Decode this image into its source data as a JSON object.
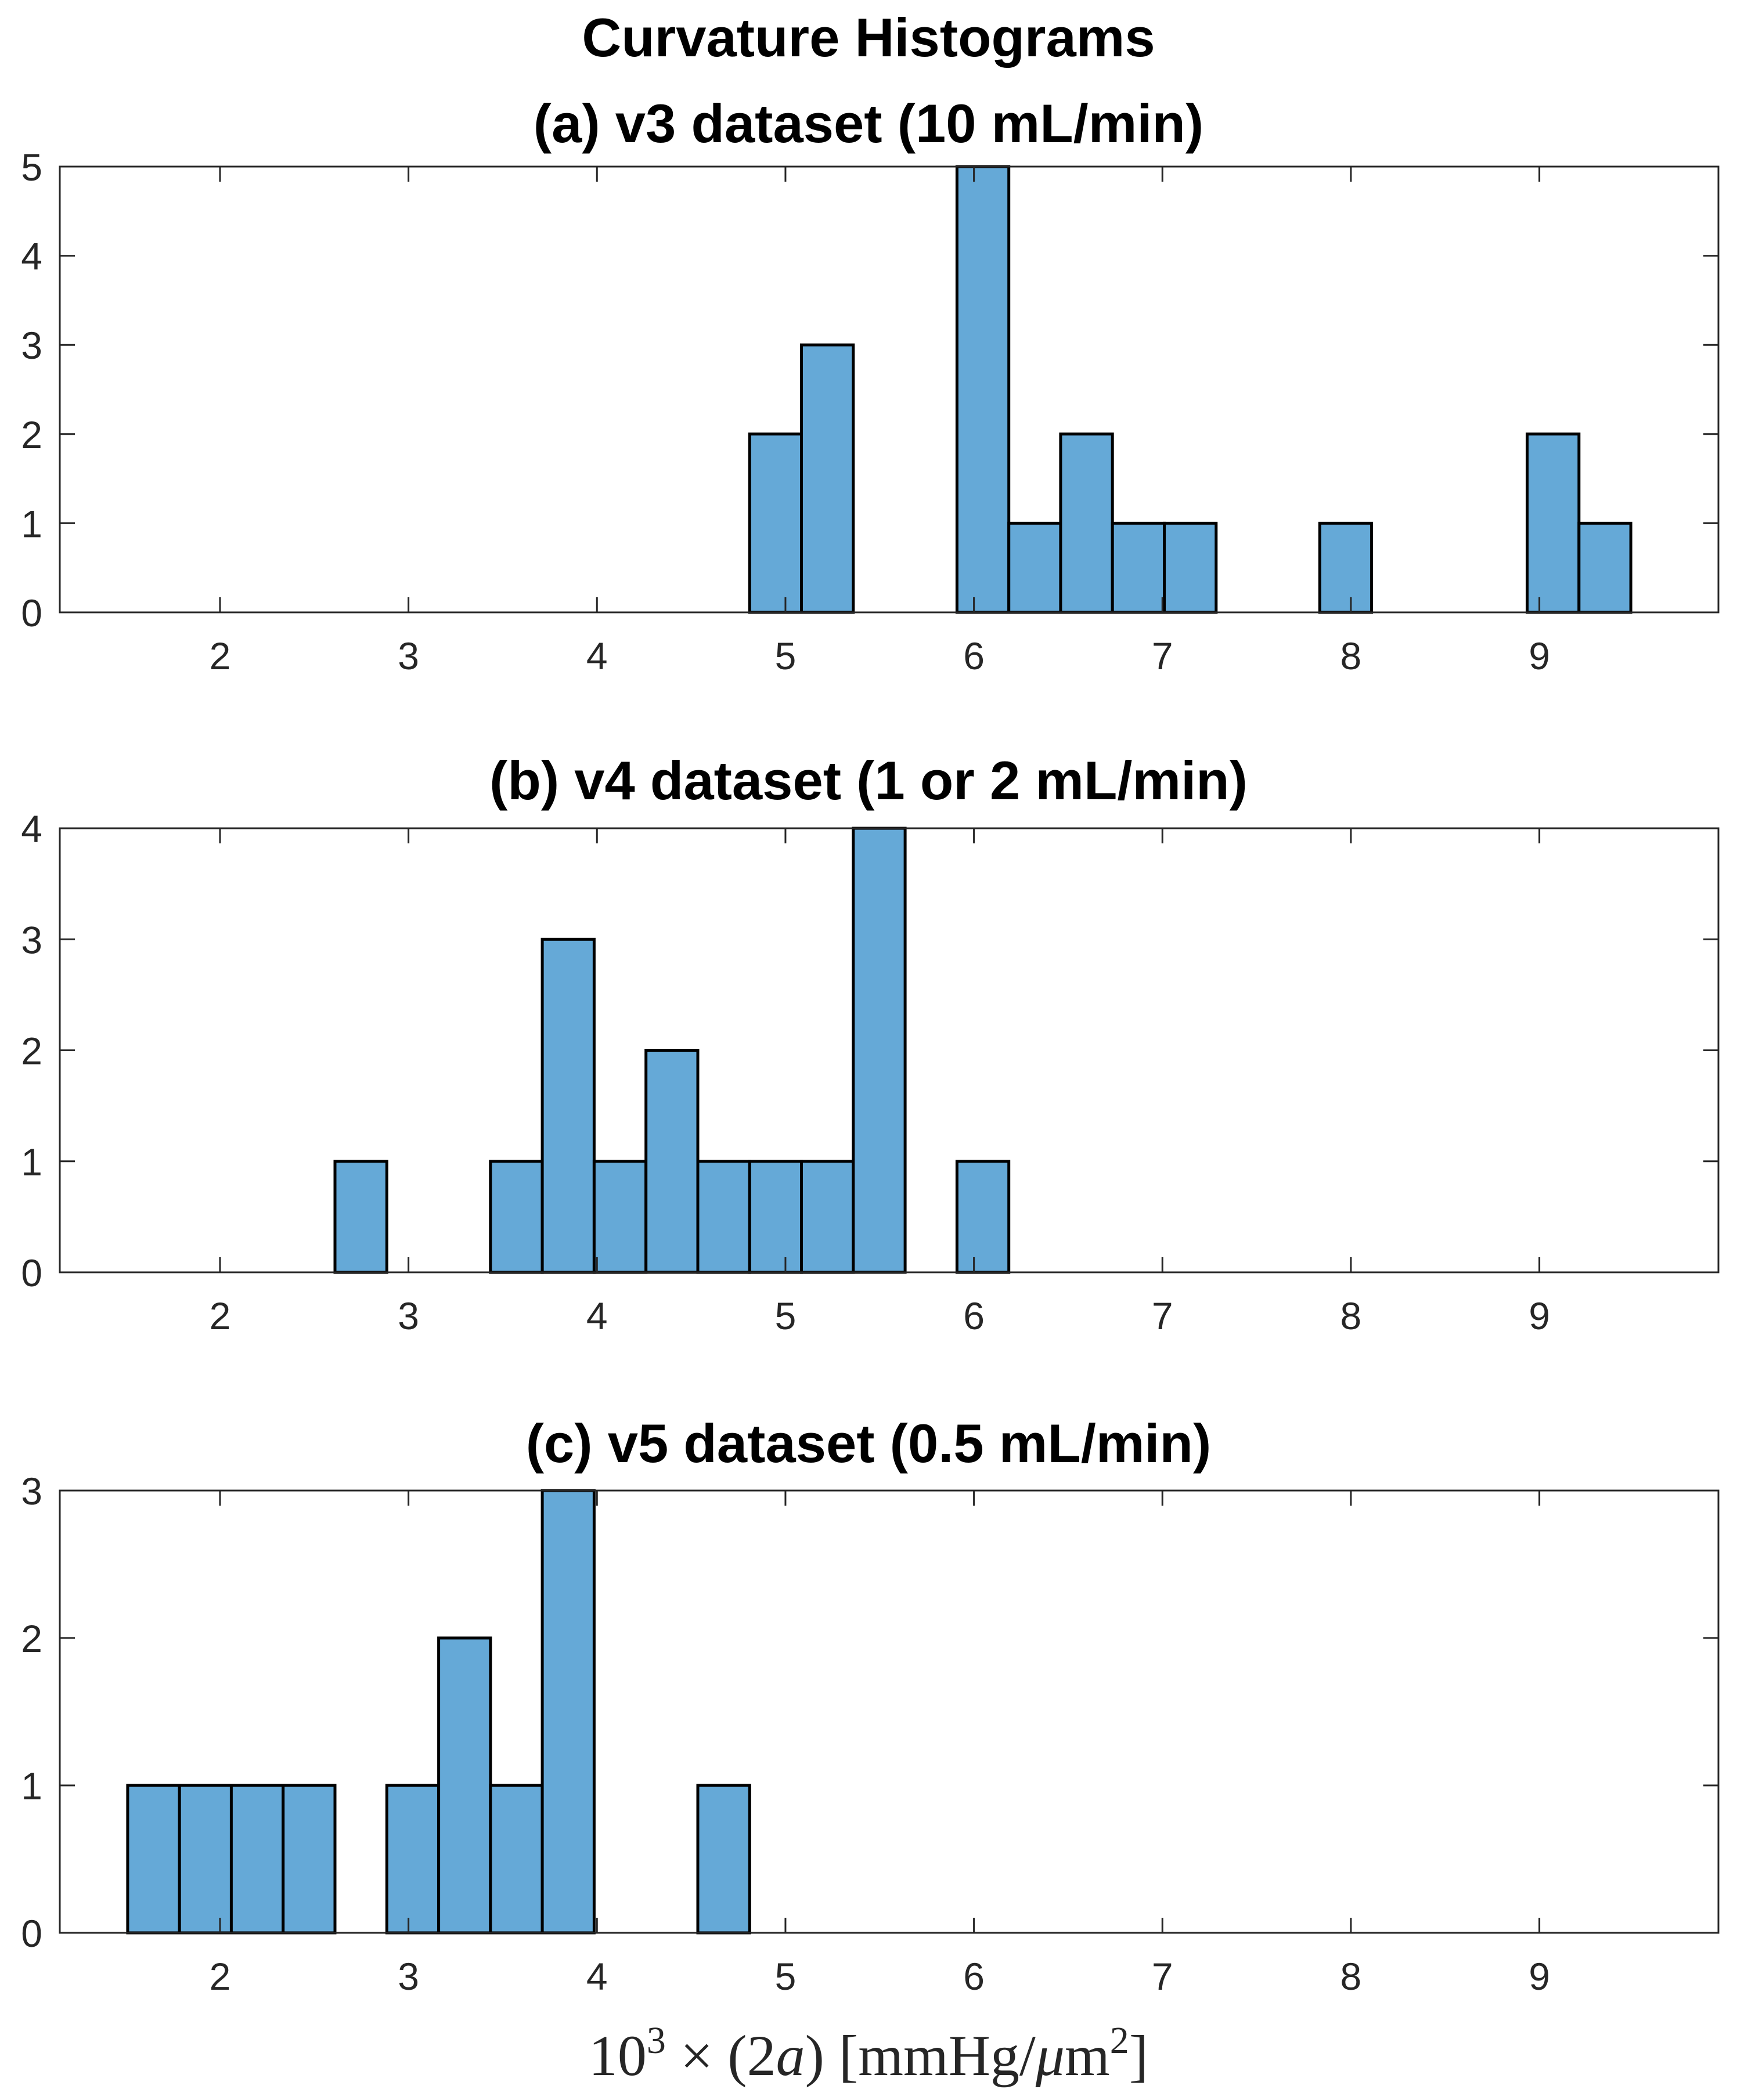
{
  "figure_title": "Curvature Histograms",
  "xlabel": {
    "base": "10",
    "base_exp": "3",
    "times": "×",
    "lparen": "(",
    "coef": "2",
    "var": "a",
    "rparen": ")",
    "unit_open": "[",
    "unit_num": "mmHg/",
    "unit_mu": "μ",
    "unit_m": "m",
    "unit_exp": "2",
    "unit_close": "]"
  },
  "colors": {
    "bar_fill": "#65a9d7",
    "bar_edge": "#000000",
    "axes": "#262626"
  },
  "chart_data": [
    {
      "type": "bar",
      "title": "(a) v3 dataset (10 mL/min)",
      "xlabel": "",
      "ylabel": "",
      "bin_width": 0.275,
      "xlim": [
        1.15,
        9.95
      ],
      "ylim": [
        0,
        5
      ],
      "xticks": [
        2,
        3,
        4,
        5,
        6,
        7,
        8,
        9
      ],
      "yticks": [
        0,
        1,
        2,
        3,
        4,
        5
      ],
      "bins": [
        {
          "left": 4.81,
          "count": 2
        },
        {
          "left": 5.085,
          "count": 3
        },
        {
          "left": 5.91,
          "count": 5
        },
        {
          "left": 6.185,
          "count": 1
        },
        {
          "left": 6.46,
          "count": 2
        },
        {
          "left": 6.735,
          "count": 1
        },
        {
          "left": 7.01,
          "count": 1
        },
        {
          "left": 7.835,
          "count": 1
        },
        {
          "left": 8.935,
          "count": 2
        },
        {
          "left": 9.21,
          "count": 1
        }
      ]
    },
    {
      "type": "bar",
      "title": "(b) v4 dataset (1 or 2 mL/min)",
      "xlabel": "",
      "ylabel": "",
      "bin_width": 0.275,
      "xlim": [
        1.15,
        9.95
      ],
      "ylim": [
        0,
        4
      ],
      "xticks": [
        2,
        3,
        4,
        5,
        6,
        7,
        8,
        9
      ],
      "yticks": [
        0,
        1,
        2,
        3,
        4
      ],
      "bins": [
        {
          "left": 2.61,
          "count": 1
        },
        {
          "left": 3.435,
          "count": 1
        },
        {
          "left": 3.71,
          "count": 3
        },
        {
          "left": 3.985,
          "count": 1
        },
        {
          "left": 4.26,
          "count": 2
        },
        {
          "left": 4.535,
          "count": 1
        },
        {
          "left": 4.81,
          "count": 1
        },
        {
          "left": 5.085,
          "count": 1
        },
        {
          "left": 5.36,
          "count": 4
        },
        {
          "left": 5.91,
          "count": 1
        }
      ]
    },
    {
      "type": "bar",
      "title": "(c) v5 dataset (0.5 mL/min)",
      "xlabel": "",
      "ylabel": "",
      "bin_width": 0.275,
      "xlim": [
        1.15,
        9.95
      ],
      "ylim": [
        0,
        3
      ],
      "xticks": [
        2,
        3,
        4,
        5,
        6,
        7,
        8,
        9
      ],
      "yticks": [
        0,
        1,
        2,
        3
      ],
      "bins": [
        {
          "left": 1.51,
          "count": 1
        },
        {
          "left": 1.785,
          "count": 1
        },
        {
          "left": 2.06,
          "count": 1
        },
        {
          "left": 2.335,
          "count": 1
        },
        {
          "left": 2.885,
          "count": 1
        },
        {
          "left": 3.16,
          "count": 2
        },
        {
          "left": 3.435,
          "count": 1
        },
        {
          "left": 3.71,
          "count": 3
        },
        {
          "left": 4.535,
          "count": 1
        }
      ]
    }
  ]
}
